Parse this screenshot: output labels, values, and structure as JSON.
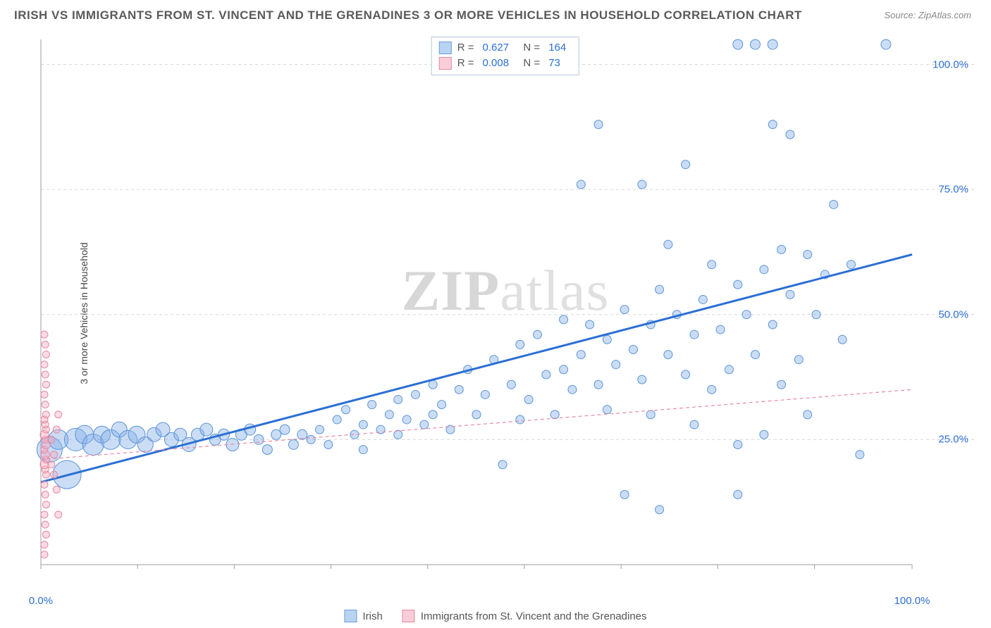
{
  "title": "IRISH VS IMMIGRANTS FROM ST. VINCENT AND THE GRENADINES 3 OR MORE VEHICLES IN HOUSEHOLD CORRELATION CHART",
  "source": "Source: ZipAtlas.com",
  "watermark": {
    "bold": "ZIP",
    "rest": "atlas"
  },
  "y_axis_label": "3 or more Vehicles in Household",
  "chart": {
    "type": "scatter",
    "xlim": [
      0,
      100
    ],
    "ylim": [
      0,
      105
    ],
    "x_ticks": [
      0,
      100
    ],
    "x_tick_labels": [
      "0.0%",
      "100.0%"
    ],
    "y_ticks": [
      25,
      50,
      75,
      100
    ],
    "y_tick_labels": [
      "25.0%",
      "50.0%",
      "75.0%",
      "100.0%"
    ],
    "minor_x_ticks": [
      11.1,
      22.2,
      33.3,
      44.4,
      55.5,
      66.6,
      77.7,
      88.8
    ],
    "grid_y": [
      25,
      50,
      75,
      100
    ],
    "grid_dash": "4,4",
    "background_color": "#ffffff",
    "grid_color": "#d6d6d6",
    "axis_color": "#9c9c9c",
    "tick_label_color": "#2b6fd4",
    "tick_label_fontsize": 15
  },
  "stats": {
    "rows": [
      {
        "swatch_fill": "#b9d3f2",
        "swatch_stroke": "#6a9ed8",
        "r": "0.627",
        "n": "164"
      },
      {
        "swatch_fill": "#f9cdd8",
        "swatch_stroke": "#e58aa3",
        "r": "0.008",
        "n": "73"
      }
    ],
    "r_label": "R  =",
    "n_label": "N  ="
  },
  "legend_bottom": [
    {
      "swatch_fill": "#b9d3f2",
      "swatch_stroke": "#6a9ed8",
      "label": "Irish"
    },
    {
      "swatch_fill": "#f9cdd8",
      "swatch_stroke": "#e58aa3",
      "label": "Immigrants from St. Vincent and the Grenadines"
    }
  ],
  "series": [
    {
      "name": "irish",
      "marker_fill": "rgba(130,175,230,0.42)",
      "marker_stroke": "#5a94d8",
      "marker_stroke_width": 1,
      "trend": {
        "x1": 0,
        "y1": 16.5,
        "x2": 100,
        "y2": 62,
        "color": "#2b6fd4",
        "width": 3,
        "dash": ""
      },
      "points": [
        {
          "x": 1,
          "y": 23,
          "r": 18
        },
        {
          "x": 3,
          "y": 18,
          "r": 20
        },
        {
          "x": 2,
          "y": 25,
          "r": 14
        },
        {
          "x": 4,
          "y": 25,
          "r": 16
        },
        {
          "x": 5,
          "y": 26,
          "r": 13
        },
        {
          "x": 6,
          "y": 24,
          "r": 15
        },
        {
          "x": 7,
          "y": 26,
          "r": 12
        },
        {
          "x": 8,
          "y": 25,
          "r": 14
        },
        {
          "x": 9,
          "y": 27,
          "r": 11
        },
        {
          "x": 10,
          "y": 25,
          "r": 13
        },
        {
          "x": 11,
          "y": 26,
          "r": 12
        },
        {
          "x": 12,
          "y": 24,
          "r": 11
        },
        {
          "x": 13,
          "y": 26,
          "r": 10
        },
        {
          "x": 14,
          "y": 27,
          "r": 10
        },
        {
          "x": 15,
          "y": 25,
          "r": 10
        },
        {
          "x": 16,
          "y": 26,
          "r": 9
        },
        {
          "x": 17,
          "y": 24,
          "r": 10
        },
        {
          "x": 18,
          "y": 26,
          "r": 9
        },
        {
          "x": 19,
          "y": 27,
          "r": 9
        },
        {
          "x": 20,
          "y": 25,
          "r": 8
        },
        {
          "x": 21,
          "y": 26,
          "r": 8
        },
        {
          "x": 22,
          "y": 24,
          "r": 9
        },
        {
          "x": 23,
          "y": 26,
          "r": 8
        },
        {
          "x": 24,
          "y": 27,
          "r": 8
        },
        {
          "x": 25,
          "y": 25,
          "r": 7
        },
        {
          "x": 26,
          "y": 23,
          "r": 7
        },
        {
          "x": 27,
          "y": 26,
          "r": 7
        },
        {
          "x": 28,
          "y": 27,
          "r": 7
        },
        {
          "x": 29,
          "y": 24,
          "r": 7
        },
        {
          "x": 30,
          "y": 26,
          "r": 7
        },
        {
          "x": 31,
          "y": 25,
          "r": 6
        },
        {
          "x": 32,
          "y": 27,
          "r": 6
        },
        {
          "x": 33,
          "y": 24,
          "r": 6
        },
        {
          "x": 34,
          "y": 29,
          "r": 6
        },
        {
          "x": 35,
          "y": 31,
          "r": 6
        },
        {
          "x": 36,
          "y": 26,
          "r": 6
        },
        {
          "x": 37,
          "y": 28,
          "r": 6
        },
        {
          "x": 37,
          "y": 23,
          "r": 6
        },
        {
          "x": 38,
          "y": 32,
          "r": 6
        },
        {
          "x": 39,
          "y": 27,
          "r": 6
        },
        {
          "x": 40,
          "y": 30,
          "r": 6
        },
        {
          "x": 41,
          "y": 33,
          "r": 6
        },
        {
          "x": 41,
          "y": 26,
          "r": 6
        },
        {
          "x": 42,
          "y": 29,
          "r": 6
        },
        {
          "x": 43,
          "y": 34,
          "r": 6
        },
        {
          "x": 44,
          "y": 28,
          "r": 6
        },
        {
          "x": 45,
          "y": 36,
          "r": 6
        },
        {
          "x": 45,
          "y": 30,
          "r": 6
        },
        {
          "x": 46,
          "y": 32,
          "r": 6
        },
        {
          "x": 47,
          "y": 27,
          "r": 6
        },
        {
          "x": 48,
          "y": 35,
          "r": 6
        },
        {
          "x": 49,
          "y": 39,
          "r": 6
        },
        {
          "x": 50,
          "y": 30,
          "r": 6
        },
        {
          "x": 51,
          "y": 34,
          "r": 6
        },
        {
          "x": 52,
          "y": 41,
          "r": 6
        },
        {
          "x": 53,
          "y": 20,
          "r": 6
        },
        {
          "x": 54,
          "y": 36,
          "r": 6
        },
        {
          "x": 55,
          "y": 29,
          "r": 6
        },
        {
          "x": 55,
          "y": 44,
          "r": 6
        },
        {
          "x": 56,
          "y": 33,
          "r": 6
        },
        {
          "x": 57,
          "y": 46,
          "r": 6
        },
        {
          "x": 58,
          "y": 38,
          "r": 6
        },
        {
          "x": 59,
          "y": 30,
          "r": 6
        },
        {
          "x": 60,
          "y": 49,
          "r": 6
        },
        {
          "x": 60,
          "y": 39,
          "r": 6
        },
        {
          "x": 61,
          "y": 35,
          "r": 6
        },
        {
          "x": 62,
          "y": 42,
          "r": 6
        },
        {
          "x": 62,
          "y": 76,
          "r": 6
        },
        {
          "x": 63,
          "y": 48,
          "r": 6
        },
        {
          "x": 64,
          "y": 36,
          "r": 6
        },
        {
          "x": 64,
          "y": 88,
          "r": 6
        },
        {
          "x": 65,
          "y": 45,
          "r": 6
        },
        {
          "x": 65,
          "y": 31,
          "r": 6
        },
        {
          "x": 66,
          "y": 40,
          "r": 6
        },
        {
          "x": 67,
          "y": 51,
          "r": 6
        },
        {
          "x": 67,
          "y": 14,
          "r": 6
        },
        {
          "x": 68,
          "y": 43,
          "r": 6
        },
        {
          "x": 69,
          "y": 76,
          "r": 6
        },
        {
          "x": 69,
          "y": 37,
          "r": 6
        },
        {
          "x": 70,
          "y": 48,
          "r": 6
        },
        {
          "x": 70,
          "y": 30,
          "r": 6
        },
        {
          "x": 71,
          "y": 55,
          "r": 6
        },
        {
          "x": 71,
          "y": 11,
          "r": 6
        },
        {
          "x": 72,
          "y": 42,
          "r": 6
        },
        {
          "x": 72,
          "y": 64,
          "r": 6
        },
        {
          "x": 73,
          "y": 50,
          "r": 6
        },
        {
          "x": 74,
          "y": 38,
          "r": 6
        },
        {
          "x": 74,
          "y": 80,
          "r": 6
        },
        {
          "x": 75,
          "y": 46,
          "r": 6
        },
        {
          "x": 75,
          "y": 28,
          "r": 6
        },
        {
          "x": 76,
          "y": 53,
          "r": 6
        },
        {
          "x": 77,
          "y": 60,
          "r": 6
        },
        {
          "x": 77,
          "y": 35,
          "r": 6
        },
        {
          "x": 78,
          "y": 47,
          "r": 6
        },
        {
          "x": 79,
          "y": 39,
          "r": 6
        },
        {
          "x": 80,
          "y": 56,
          "r": 6
        },
        {
          "x": 80,
          "y": 24,
          "r": 6
        },
        {
          "x": 80,
          "y": 14,
          "r": 6
        },
        {
          "x": 80,
          "y": 104,
          "r": 7
        },
        {
          "x": 81,
          "y": 50,
          "r": 6
        },
        {
          "x": 82,
          "y": 104,
          "r": 7
        },
        {
          "x": 82,
          "y": 42,
          "r": 6
        },
        {
          "x": 83,
          "y": 59,
          "r": 6
        },
        {
          "x": 83,
          "y": 26,
          "r": 6
        },
        {
          "x": 84,
          "y": 88,
          "r": 6
        },
        {
          "x": 84,
          "y": 104,
          "r": 7
        },
        {
          "x": 84,
          "y": 48,
          "r": 6
        },
        {
          "x": 85,
          "y": 63,
          "r": 6
        },
        {
          "x": 85,
          "y": 36,
          "r": 6
        },
        {
          "x": 86,
          "y": 86,
          "r": 6
        },
        {
          "x": 86,
          "y": 54,
          "r": 6
        },
        {
          "x": 87,
          "y": 41,
          "r": 6
        },
        {
          "x": 88,
          "y": 62,
          "r": 6
        },
        {
          "x": 88,
          "y": 30,
          "r": 6
        },
        {
          "x": 89,
          "y": 50,
          "r": 6
        },
        {
          "x": 90,
          "y": 58,
          "r": 6
        },
        {
          "x": 91,
          "y": 72,
          "r": 6
        },
        {
          "x": 92,
          "y": 45,
          "r": 6
        },
        {
          "x": 93,
          "y": 60,
          "r": 6
        },
        {
          "x": 94,
          "y": 22,
          "r": 6
        },
        {
          "x": 97,
          "y": 104,
          "r": 7
        }
      ]
    },
    {
      "name": "svg_immigrants",
      "marker_fill": "rgba(245,170,190,0.42)",
      "marker_stroke": "#e58aa3",
      "marker_stroke_width": 1,
      "trend": {
        "x1": 0,
        "y1": 21,
        "x2": 100,
        "y2": 35,
        "color": "#e58aa3",
        "width": 1.2,
        "dash": "5,4"
      },
      "points": [
        {
          "x": 0.4,
          "y": 2,
          "r": 5
        },
        {
          "x": 0.4,
          "y": 4,
          "r": 5
        },
        {
          "x": 0.6,
          "y": 6,
          "r": 5
        },
        {
          "x": 0.5,
          "y": 8,
          "r": 5
        },
        {
          "x": 0.4,
          "y": 10,
          "r": 5
        },
        {
          "x": 0.6,
          "y": 12,
          "r": 5
        },
        {
          "x": 0.5,
          "y": 14,
          "r": 5
        },
        {
          "x": 0.4,
          "y": 16,
          "r": 5
        },
        {
          "x": 0.6,
          "y": 18,
          "r": 5
        },
        {
          "x": 0.5,
          "y": 19,
          "r": 5
        },
        {
          "x": 0.4,
          "y": 20,
          "r": 6
        },
        {
          "x": 0.6,
          "y": 21,
          "r": 5
        },
        {
          "x": 0.5,
          "y": 22,
          "r": 6
        },
        {
          "x": 0.4,
          "y": 23,
          "r": 5
        },
        {
          "x": 0.6,
          "y": 24,
          "r": 6
        },
        {
          "x": 0.5,
          "y": 25,
          "r": 5
        },
        {
          "x": 0.4,
          "y": 26,
          "r": 6
        },
        {
          "x": 0.6,
          "y": 27,
          "r": 5
        },
        {
          "x": 0.5,
          "y": 28,
          "r": 5
        },
        {
          "x": 0.4,
          "y": 29,
          "r": 5
        },
        {
          "x": 0.6,
          "y": 30,
          "r": 5
        },
        {
          "x": 0.5,
          "y": 32,
          "r": 5
        },
        {
          "x": 0.4,
          "y": 34,
          "r": 5
        },
        {
          "x": 0.6,
          "y": 36,
          "r": 5
        },
        {
          "x": 0.5,
          "y": 38,
          "r": 5
        },
        {
          "x": 0.4,
          "y": 40,
          "r": 5
        },
        {
          "x": 0.6,
          "y": 42,
          "r": 5
        },
        {
          "x": 0.5,
          "y": 44,
          "r": 5
        },
        {
          "x": 0.4,
          "y": 46,
          "r": 5
        },
        {
          "x": 1.2,
          "y": 20,
          "r": 5
        },
        {
          "x": 1.2,
          "y": 25,
          "r": 5
        },
        {
          "x": 1.5,
          "y": 22,
          "r": 5
        },
        {
          "x": 1.5,
          "y": 18,
          "r": 5
        },
        {
          "x": 1.8,
          "y": 27,
          "r": 5
        },
        {
          "x": 1.8,
          "y": 15,
          "r": 5
        },
        {
          "x": 2.0,
          "y": 30,
          "r": 5
        },
        {
          "x": 2.0,
          "y": 10,
          "r": 5
        }
      ]
    }
  ]
}
